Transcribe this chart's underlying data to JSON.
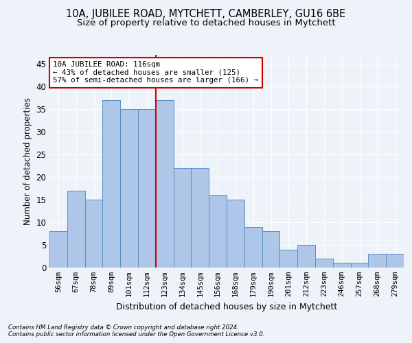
{
  "title1": "10A, JUBILEE ROAD, MYTCHETT, CAMBERLEY, GU16 6BE",
  "title2": "Size of property relative to detached houses in Mytchett",
  "xlabel": "Distribution of detached houses by size in Mytchett",
  "ylabel": "Number of detached properties",
  "categories": [
    "56sqm",
    "67sqm",
    "78sqm",
    "89sqm",
    "101sqm",
    "112sqm",
    "123sqm",
    "134sqm",
    "145sqm",
    "156sqm",
    "168sqm",
    "179sqm",
    "190sqm",
    "201sqm",
    "212sqm",
    "223sqm",
    "246sqm",
    "257sqm",
    "268sqm",
    "279sqm"
  ],
  "values": [
    8,
    17,
    15,
    37,
    35,
    35,
    37,
    22,
    22,
    16,
    15,
    9,
    8,
    4,
    5,
    2,
    1,
    1,
    3,
    3
  ],
  "bar_color": "#aec6e8",
  "bar_edge_color": "#5a8fc2",
  "red_line_x": 5.5,
  "annotation_title": "10A JUBILEE ROAD: 116sqm",
  "annotation_line1": "← 43% of detached houses are smaller (125)",
  "annotation_line2": "57% of semi-detached houses are larger (166) →",
  "ylim": [
    0,
    47
  ],
  "yticks": [
    0,
    5,
    10,
    15,
    20,
    25,
    30,
    35,
    40,
    45
  ],
  "footnote1": "Contains HM Land Registry data © Crown copyright and database right 2024.",
  "footnote2": "Contains public sector information licensed under the Open Government Licence v3.0.",
  "bg_color": "#eef2f9",
  "title1_fontsize": 10.5,
  "title2_fontsize": 9.5,
  "annotation_box_color": "#ffffff",
  "annotation_border_color": "#cc0000",
  "red_line_color": "#cc0000"
}
